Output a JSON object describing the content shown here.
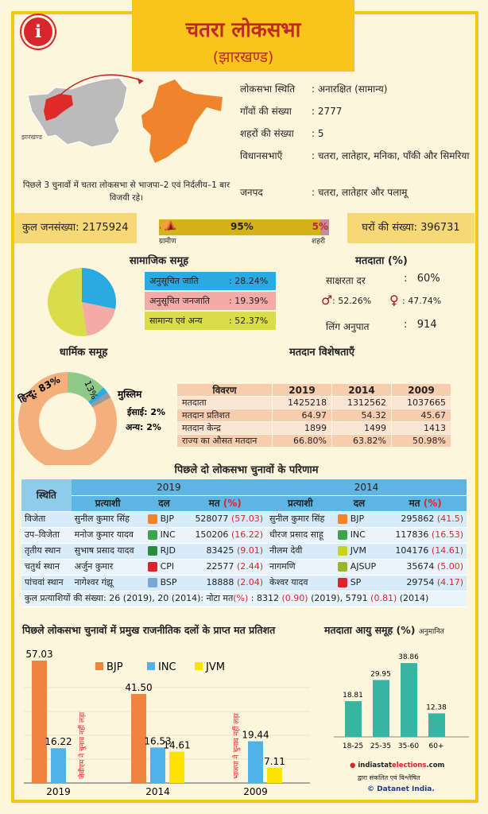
{
  "header": {
    "title": "चतरा लोकसभा",
    "subtitle": "(झारखण्ड)",
    "info_icon": "i"
  },
  "map": {
    "state_label": "झारखण्ड",
    "caption": "पिछले 3 चुनावों में चतरा लोकसभा से भाजपा–2 एवं निर्दलीय–1 बार विजयी रहे।",
    "state_color": "#bbbbbb",
    "highlight_color": "#e02a27",
    "constituency_color": "#f0842c"
  },
  "info": [
    {
      "k": "लोकसभा स्थिति",
      "v": ": अनारक्षित (सामान्य)"
    },
    {
      "k": "गाँवों की संख्या",
      "v": ": 2777"
    },
    {
      "k": "शहरों की संख्या",
      "v": ": 5"
    },
    {
      "k": "विधानसभाएँ",
      "v": ": चतरा, लातेहार, मनिका, पाँकी और सिमरिया"
    },
    {
      "k": "जनपद",
      "v": ": चतरा, लातेहार और पलामू"
    }
  ],
  "population": {
    "label": "कुल जनसंख्या: 2175924",
    "rural_pct": 95,
    "urban_pct": 5,
    "rural_text": "95%",
    "urban_text": "5%",
    "rural_label": "ग्रामीण",
    "urban_label": "शहरी"
  },
  "households": {
    "label": "घरों की संख्या: 396731"
  },
  "social": {
    "title": "सामाजिक समूह",
    "items": [
      {
        "label": "अनुसूचित जाति",
        "value": ": 28.24%",
        "pct": 28.24,
        "color": "#29abe2"
      },
      {
        "label": "अनुसूचित जनजाति",
        "value": ": 19.39%",
        "pct": 19.39,
        "color": "#f4aaa6"
      },
      {
        "label": "सामान्य एवं अन्य",
        "value": ": 52.37%",
        "pct": 52.37,
        "color": "#d9dd4a"
      }
    ]
  },
  "voters": {
    "title": "मतदाता (%)",
    "literacy_label": "साक्षरता दर",
    "literacy_value": ":   60%",
    "male": ": 52.26%",
    "female": ": 47.74%",
    "sex_ratio_label": "लिंग अनुपात",
    "sex_ratio_value": ":   914"
  },
  "religion": {
    "title": "धार्मिक समूह",
    "items": [
      {
        "label": "हिन्दू: 83%",
        "pct": 83,
        "color": "#f4b07c"
      },
      {
        "label": "मुस्लिम",
        "inner": "13%",
        "pct": 13,
        "color": "#8fc98a"
      },
      {
        "label": "ईसाई: 2%",
        "pct": 2,
        "color": "#29abe2"
      },
      {
        "label": "अन्य: 2%",
        "pct": 2,
        "color": "#999999"
      }
    ]
  },
  "voting": {
    "title": "मतदान विशेषताएँ",
    "rows": [
      [
        "विवरण",
        "2019",
        "2014",
        "2009"
      ],
      [
        "मतदाता",
        "1425218",
        "1312562",
        "1037665"
      ],
      [
        "मतदान प्रतिशत",
        "64.97",
        "54.32",
        "45.67"
      ],
      [
        "मतदान केन्द्र",
        "1899",
        "1499",
        "1413"
      ],
      [
        "राज्य का औसत मतदान",
        "66.80%",
        "63.82%",
        "50.98%"
      ]
    ]
  },
  "results": {
    "title": "पिछले दो लोकसभा चुनावों के परिणाम",
    "status_header": "स्थिति",
    "years": [
      "2019",
      "2014"
    ],
    "col_candidate": "प्रत्याशी",
    "col_party": "दल",
    "col_votes": "मत",
    "col_pct": "(%)",
    "rows": [
      {
        "pos": "विजेता",
        "c19": "सुनील कुमार सिंह",
        "p19": "BJP",
        "s19": "#f0842c",
        "v19": "528077",
        "pc19": "(57.03)",
        "c14": "सुनील कुमार सिंह",
        "p14": "BJP",
        "s14": "#f0842c",
        "v14": "295862",
        "pc14": "(41.5)"
      },
      {
        "pos": "उप–विजेता",
        "c19": "मनोज कुमार यादव",
        "p19": "INC",
        "s19": "#3fa34d",
        "v19": "150206",
        "pc19": "(16.22)",
        "c14": "धीरज प्रसाद साहू",
        "p14": "INC",
        "s14": "#3fa34d",
        "v14": "117836",
        "pc14": "(16.53)"
      },
      {
        "pos": "तृतीय स्थान",
        "c19": "सुभाष प्रसाद यादव",
        "p19": "RJD",
        "s19": "#2e8b3e",
        "v19": "83425",
        "pc19": "(9.01)",
        "c14": "नीलम देवी",
        "p14": "JVM",
        "s14": "#c9d21f",
        "v14": "104176",
        "pc14": "(14.61)"
      },
      {
        "pos": "चतुर्थ स्थान",
        "c19": "अर्जुन कुमार",
        "p19": "CPI",
        "s19": "#d8262c",
        "v19": "22577",
        "pc19": "(2.44)",
        "c14": "नागमणि",
        "p14": "AJSUP",
        "s14": "#9ab52a",
        "v14": "35674",
        "pc14": "(5.00)"
      },
      {
        "pos": "पांचवां स्थान",
        "c19": "नागेश्वर गंझू",
        "p19": "BSP",
        "s19": "#7aa6d6",
        "v19": "18888",
        "pc19": "(2.04)",
        "c14": "केश्वर यादव",
        "p14": "SP",
        "s14": "#d8262c",
        "v14": "29754",
        "pc14": "(4.17)"
      }
    ],
    "footer_a": "कुल प्रत्याशियों की संख्या: 26 (2019), 20 (2014): नोटा मत",
    "footer_pct": "(%)",
    "footer_b": " : 8312 ",
    "footer_c": "(0.90)",
    "footer_d": " (2019), 5791 ",
    "footer_e": "(0.81)",
    "footer_f": " (2014)"
  },
  "chart_data": [
    {
      "type": "bar",
      "title": "पिछले लोकसभा चुनावों में प्रमुख राजनीतिक दलों के प्राप्त मत प्रतिशत",
      "categories": [
        "2019",
        "2014",
        "2009"
      ],
      "series": [
        {
          "name": "BJP",
          "color": "#f0843e",
          "values": [
            57.03,
            41.5,
            null
          ]
        },
        {
          "name": "INC",
          "color": "#4fb3e8",
          "values": [
            16.22,
            16.53,
            19.44
          ]
        },
        {
          "name": "JVM",
          "color": "#fde400",
          "values": [
            null,
            14.61,
            7.11
          ]
        }
      ],
      "labels": {
        "BJP": [
          "57.03",
          "41.50",
          null
        ],
        "INC": [
          "16.22",
          "16.53",
          "19.44"
        ],
        "JVM": [
          null,
          "14.61",
          "7.11"
        ]
      },
      "annotations": [
        "जेवीएम ने चुनाव नहीं लड़ा",
        "भाजपा ने चुनाव नहीं लड़ा"
      ],
      "ylim": [
        0,
        60
      ],
      "legend": "top"
    },
    {
      "type": "bar",
      "title": "मतदाता आयु समूह (%)",
      "note": "अनुमानित",
      "categories": [
        "18-25",
        "25-35",
        "35-60",
        "60+"
      ],
      "values": [
        18.81,
        29.95,
        38.86,
        12.38
      ],
      "labels": [
        "18.81",
        "29.95",
        "38.86",
        "12.38"
      ],
      "color": "#36b5a3",
      "ylim": [
        0,
        40
      ]
    }
  ],
  "credits": {
    "site_a": "indiastat",
    "site_b": "elections",
    "site_c": ".com",
    "line2": "द्वारा संकलित एवं विश्लेषित",
    "brand": "© Datanet India."
  }
}
